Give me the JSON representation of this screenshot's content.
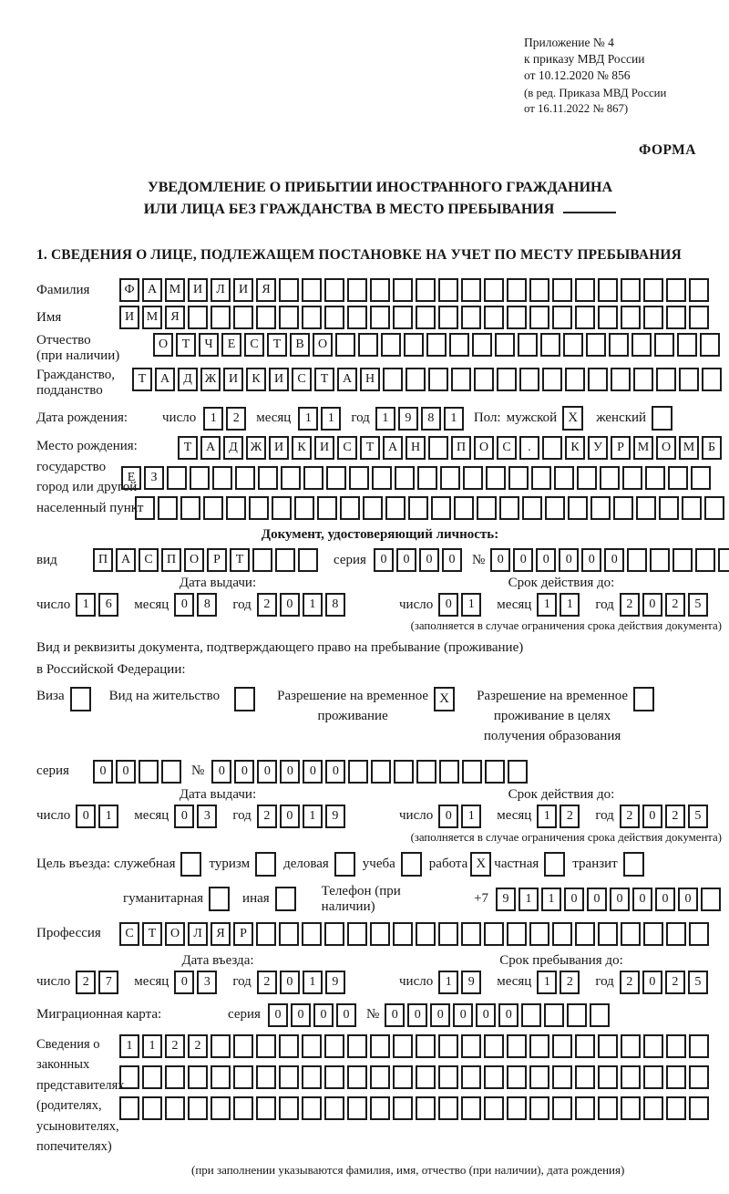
{
  "meta": {
    "appendix1": "Приложение № 4",
    "appendix2": "к приказу МВД России",
    "appendix3": "от 10.12.2020 № 856",
    "amendment1": "(в ред. Приказа МВД России",
    "amendment2": "от 16.11.2022 № 867)",
    "form_label": "ФОРМА"
  },
  "title": {
    "line1": "УВЕДОМЛЕНИЕ О ПРИБЫТИИ ИНОСТРАННОГО ГРАЖДАНИНА",
    "line2": "ИЛИ ЛИЦА БЕЗ ГРАЖДАНСТВА В МЕСТО ПРЕБЫВАНИЯ"
  },
  "section": {
    "heading": "1. СВЕДЕНИЯ О ЛИЦЕ, ПОДЛЕЖАЩЕМ ПОСТАНОВКЕ НА УЧЕТ ПО МЕСТУ ПРЕБЫВАНИЯ"
  },
  "date_labels": {
    "day": "число",
    "month": "месяц",
    "year": "год"
  },
  "person": {
    "surname": {
      "label": "Фамилия",
      "grid": {
        "value": "ФАМИЛИЯ",
        "length": 26
      }
    },
    "given_name": {
      "label": "Имя",
      "grid": {
        "value": "ИМЯ",
        "length": 26
      }
    },
    "patronymic": {
      "label": "Отчество",
      "label2": "(при наличии)",
      "grid": {
        "value": "ОТЧЕСТВО",
        "length": 25
      }
    },
    "citizenship": {
      "label": "Гражданство,",
      "label2": "подданство",
      "grid": {
        "value": "ТАДЖИКИСТАН",
        "length": 26
      }
    },
    "birth_date": {
      "label": "Дата рождения:",
      "day": {
        "value": "12",
        "length": 2
      },
      "month": {
        "value": "11",
        "length": 2
      },
      "year": {
        "value": "1981",
        "length": 4
      }
    },
    "gender": {
      "label": "Пол:",
      "male_label": "мужской",
      "male_mark": "X",
      "female_label": "женский",
      "female_mark": ""
    },
    "birth_place": {
      "labels": "Место рождения:\nгосударство\nгород или другой\nнаселенный пункт",
      "row1": {
        "value": "ТАДЖИКИСТАН ПОС. КУРМОМБ",
        "length": 24
      },
      "row2": {
        "value": "ЕЗ",
        "length": 26
      },
      "row3": {
        "value": "",
        "length": 26
      }
    }
  },
  "identity_doc": {
    "heading": "Документ, удостоверяющий личность:",
    "kind_label": "вид",
    "kind": {
      "value": "ПАСПОРТ",
      "length": 10
    },
    "series_label": "серия",
    "series": {
      "value": "0000",
      "length": 4
    },
    "number_label": "№",
    "number": {
      "value": "000000",
      "length": 11
    },
    "issue": {
      "heading": "Дата выдачи:",
      "day": {
        "value": "16",
        "length": 2
      },
      "month": {
        "value": "08",
        "length": 2
      },
      "year": {
        "value": "2018",
        "length": 4
      }
    },
    "expiry": {
      "heading": "Срок действия до:",
      "day": {
        "value": "01",
        "length": 2
      },
      "month": {
        "value": "11",
        "length": 2
      },
      "year": {
        "value": "2025",
        "length": 4
      }
    },
    "expiry_note": "(заполняется в случае ограничения срока действия документа)"
  },
  "residence_doc": {
    "line1": "Вид и реквизиты документа, подтверждающего право на пребывание (проживание)",
    "line2": "в Российской Федерации:",
    "options": [
      {
        "label": "Виза",
        "mark": ""
      },
      {
        "label": "Вид на жительство",
        "mark": ""
      },
      {
        "label": "Разрешение на временное\nпроживание",
        "mark": "X"
      },
      {
        "label": "Разрешение на временное\nпроживание в целях\nполучения образования",
        "mark": ""
      }
    ],
    "series_label": "серия",
    "series": {
      "value": "00",
      "length": 4
    },
    "number_label": "№",
    "number": {
      "value": "000000",
      "length": 14
    },
    "issue": {
      "heading": "Дата выдачи:",
      "day": {
        "value": "01",
        "length": 2
      },
      "month": {
        "value": "03",
        "length": 2
      },
      "year": {
        "value": "2019",
        "length": 4
      }
    },
    "expiry": {
      "heading": "Срок действия до:",
      "day": {
        "value": "01",
        "length": 2
      },
      "month": {
        "value": "12",
        "length": 2
      },
      "year": {
        "value": "2025",
        "length": 4
      }
    },
    "expiry_note": "(заполняется в случае ограничения срока действия документа)"
  },
  "visit": {
    "label": "Цель въезда:",
    "options": [
      {
        "label": "служебная",
        "mark": ""
      },
      {
        "label": "туризм",
        "mark": ""
      },
      {
        "label": "деловая",
        "mark": ""
      },
      {
        "label": "учеба",
        "mark": ""
      },
      {
        "label": "работа",
        "mark": "X"
      },
      {
        "label": "частная",
        "mark": ""
      },
      {
        "label": "транзит",
        "mark": ""
      },
      {
        "label": "гуманитарная",
        "mark": ""
      },
      {
        "label": "иная",
        "mark": ""
      }
    ],
    "phone_label": "Телефон (при наличии)",
    "phone_prefix": "+7",
    "phone": {
      "value": "911000000",
      "length": 10
    },
    "profession_label": "Профессия",
    "profession": {
      "value": "СТОЛЯР",
      "length": 26
    },
    "entry_date": {
      "heading": "Дата въезда:",
      "day": {
        "value": "27",
        "length": 2
      },
      "month": {
        "value": "03",
        "length": 2
      },
      "year": {
        "value": "2019",
        "length": 4
      }
    },
    "stay_until": {
      "heading": "Срок пребывания до:",
      "day": {
        "value": "19",
        "length": 2
      },
      "month": {
        "value": "12",
        "length": 2
      },
      "year": {
        "value": "2025",
        "length": 4
      }
    }
  },
  "migration_card": {
    "label": "Миграционная карта:",
    "series_label": "серия",
    "series": {
      "value": "0000",
      "length": 4
    },
    "number_label": "№",
    "number": {
      "value": "000000",
      "length": 10
    }
  },
  "representatives": {
    "label": "Сведения о\nзаконных\nпредставителях\n(родителях,\nусыновителях,\nпопечителях)",
    "row1": {
      "value": "1122",
      "length": 26
    },
    "row2": {
      "value": "",
      "length": 26
    },
    "row3": {
      "value": "",
      "length": 26
    },
    "note": "(при заполнении указываются фамилия, имя, отчество (при наличии), дата рождения)"
  }
}
